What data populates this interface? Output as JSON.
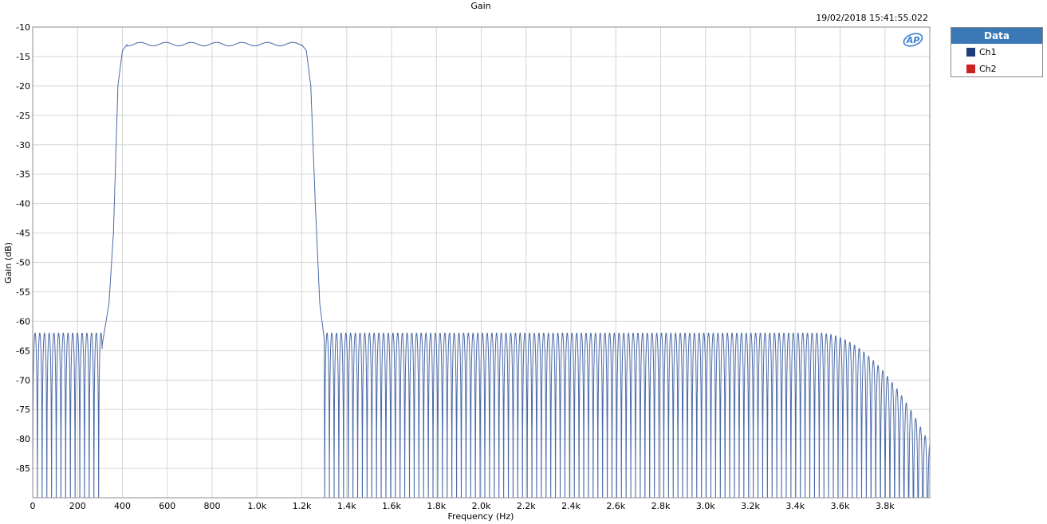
{
  "chart_data": {
    "type": "line",
    "title": "Gain",
    "timestamp": "19/02/2018 15:41:55.022",
    "xlabel": "Frequency (Hz)",
    "ylabel": "Gain (dB)",
    "xlim": [
      0,
      4000
    ],
    "ylim": [
      -90,
      -10
    ],
    "xticks": [
      0,
      200,
      400,
      600,
      800,
      1000,
      1200,
      1400,
      1600,
      1800,
      2000,
      2200,
      2400,
      2600,
      2800,
      3000,
      3200,
      3400,
      3600,
      3800
    ],
    "xtick_labels": [
      "0",
      "200",
      "400",
      "600",
      "800",
      "1.0k",
      "1.2k",
      "1.4k",
      "1.6k",
      "1.8k",
      "2.0k",
      "2.2k",
      "2.4k",
      "2.6k",
      "2.8k",
      "3.0k",
      "3.2k",
      "3.4k",
      "3.6k",
      "3.8k"
    ],
    "yticks": [
      -10,
      -15,
      -20,
      -25,
      -30,
      -35,
      -40,
      -45,
      -50,
      -55,
      -60,
      -65,
      -70,
      -75,
      -80,
      -85
    ],
    "ytick_labels": [
      "-10",
      "-15",
      "-20",
      "-25",
      "-30",
      "-35",
      "-40",
      "-45",
      "-50",
      "-55",
      "-60",
      "-65",
      "-70",
      "-75",
      "-80",
      "-85"
    ],
    "grid": true,
    "legend": {
      "title": "Data",
      "placement": "right",
      "entries": [
        {
          "name": "Ch1",
          "color": "#1f3d7a"
        },
        {
          "name": "Ch2",
          "color": "#cc2222"
        }
      ]
    },
    "series": [
      {
        "name": "Ch1",
        "color": "#4a6aa8",
        "description_points": {
          "passband": {
            "x_start": 420,
            "x_end": 1200,
            "gain_db": -12.9,
            "ripple_db": 0.3
          },
          "transition_low": [
            [
              310,
              -64
            ],
            [
              340,
              -57
            ],
            [
              360,
              -45
            ],
            [
              380,
              -20
            ],
            [
              400,
              -14
            ],
            [
              420,
              -13
            ]
          ],
          "transition_high": [
            [
              1200,
              -13
            ],
            [
              1220,
              -14
            ],
            [
              1240,
              -20
            ],
            [
              1260,
              -40
            ],
            [
              1280,
              -57
            ],
            [
              1300,
              -63
            ]
          ],
          "stopband_peak_db": -62,
          "stopband_null_depth_db": -83,
          "lobe_spacing_hz": 21,
          "rolloff_start_hz": 3500,
          "end_peak_db": -81
        }
      }
    ]
  },
  "brand": {
    "logo_text": "AP"
  }
}
